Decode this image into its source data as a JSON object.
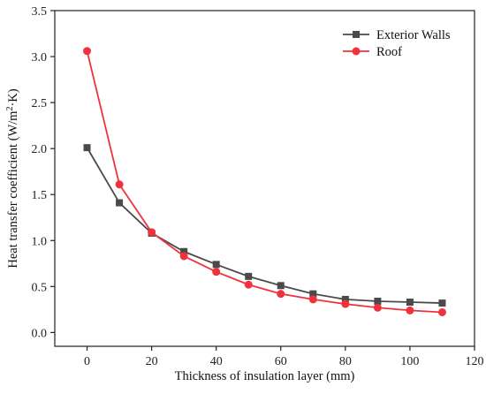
{
  "chart_data": {
    "type": "line",
    "xlabel": "Thickness of insulation layer (mm)",
    "ylabel_main": "Heat transfer coefficient (W/m",
    "ylabel_sup": "2",
    "ylabel_tail": "·K)",
    "xlim": [
      -10,
      120
    ],
    "ylim": [
      -0.15,
      3.5
    ],
    "x_ticks": [
      0,
      20,
      40,
      60,
      80,
      100,
      120
    ],
    "y_ticks": [
      "0.0",
      "0.5",
      "1.0",
      "1.5",
      "2.0",
      "2.5",
      "3.0",
      "3.5"
    ],
    "legend_position": "top-right",
    "grid": false,
    "x": [
      0,
      10,
      20,
      30,
      40,
      50,
      60,
      70,
      80,
      90,
      100,
      110
    ],
    "series": [
      {
        "name": "Exterior Walls",
        "color": "#4a4a4a",
        "marker": "square",
        "values": [
          2.01,
          1.41,
          1.08,
          0.88,
          0.74,
          0.61,
          0.51,
          0.42,
          0.36,
          0.34,
          0.33,
          0.32
        ]
      },
      {
        "name": "Roof",
        "color": "#f0323c",
        "marker": "circle",
        "values": [
          3.06,
          1.61,
          1.09,
          0.83,
          0.66,
          0.52,
          0.42,
          0.36,
          0.31,
          0.27,
          0.24,
          0.22
        ]
      }
    ]
  }
}
